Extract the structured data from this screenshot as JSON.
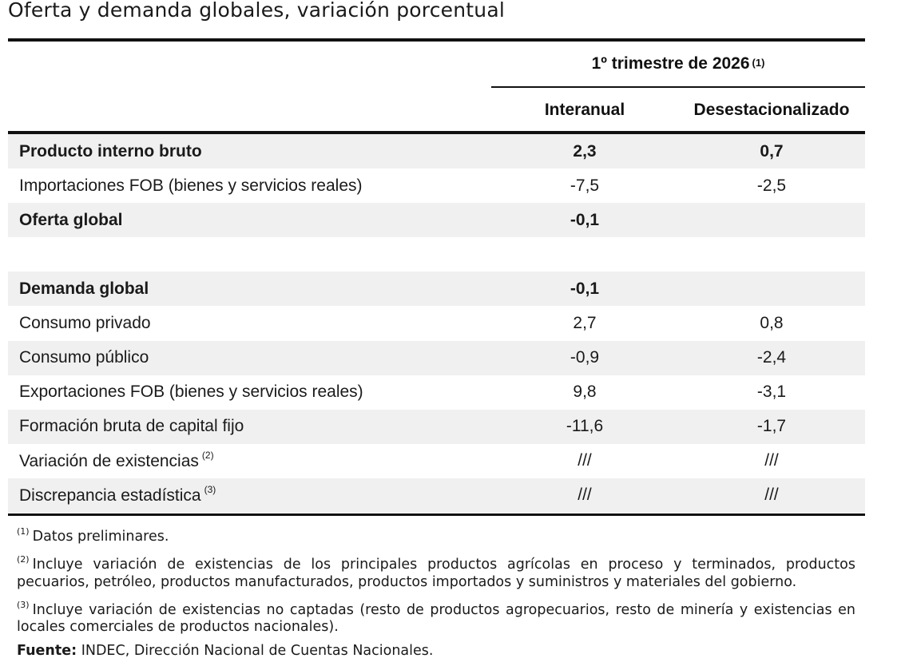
{
  "title": "Oferta y demanda globales, variación porcentual",
  "table": {
    "period": "1º trimestre de 2026",
    "period_note": "(1)",
    "col_interanual": "Interanual",
    "col_desest": "Desestacionalizado",
    "rows": [
      {
        "label": "Producto interno bruto",
        "note": "",
        "interanual": "2,3",
        "desest": "0,7"
      },
      {
        "label": "Importaciones FOB (bienes y servicios reales)",
        "note": "",
        "interanual": "-7,5",
        "desest": "-2,5"
      },
      {
        "label": "Oferta global",
        "note": "",
        "interanual": "-0,1",
        "desest": ""
      },
      {
        "label": "",
        "note": "",
        "interanual": "",
        "desest": ""
      },
      {
        "label": "Demanda global",
        "note": "",
        "interanual": "-0,1",
        "desest": ""
      },
      {
        "label": "Consumo privado",
        "note": "",
        "interanual": "2,7",
        "desest": "0,8"
      },
      {
        "label": "Consumo público",
        "note": "",
        "interanual": "-0,9",
        "desest": "-2,4"
      },
      {
        "label": "Exportaciones FOB (bienes y servicios reales)",
        "note": "",
        "interanual": "9,8",
        "desest": "-3,1"
      },
      {
        "label": "Formación bruta de capital fijo",
        "note": "",
        "interanual": "-11,6",
        "desest": "-1,7"
      },
      {
        "label": "Variación de existencias",
        "note": "(2)",
        "interanual": "///",
        "desest": "///"
      },
      {
        "label": "Discrepancia estadística",
        "note": "(3)",
        "interanual": "///",
        "desest": "///"
      }
    ]
  },
  "notes": {
    "n1_mark": "(1)",
    "n1": "Datos preliminares.",
    "n2_mark": "(2)",
    "n2": "Incluye variación de existencias de los principales productos agrícolas en proceso y terminados, productos pecuarios, petróleo, productos manufacturados, productos importados y suministros y materiales del gobierno.",
    "n3_mark": "(3)",
    "n3": "Incluye variación de existencias no captadas (resto de productos agropecuarios, resto de minería y existencias en locales comerciales de productos nacionales).",
    "source_label": "Fuente:",
    "source": "INDEC, Dirección Nacional de Cuentas Nacionales."
  }
}
